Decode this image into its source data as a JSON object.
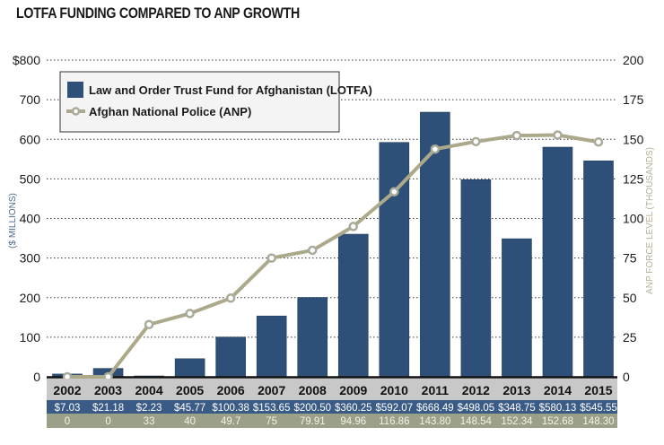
{
  "title": "LOTFA FUNDING COMPARED TO ANP GROWTH",
  "colors": {
    "bar": "#2e4f78",
    "line": "#aca88a",
    "marker_fill": "#ffffff",
    "marker_stroke": "#a9ab9a",
    "table_header": "#c8c8c8",
    "table_fund_row": "#3a5b86",
    "table_force_row": "#9ba088"
  },
  "chart_data": {
    "type": "bar",
    "title": "LOTFA FUNDING COMPARED TO ANP GROWTH",
    "categories": [
      "2002",
      "2003",
      "2004",
      "2005",
      "2006",
      "2007",
      "2008",
      "2009",
      "2010",
      "2011",
      "2012",
      "2013",
      "2014",
      "2015"
    ],
    "series": [
      {
        "name": "Law and Order Trust Fund for Afghanistan (LOTFA)",
        "type": "bar",
        "axis": "left",
        "values": [
          7.03,
          21.18,
          2.23,
          45.77,
          100.38,
          153.65,
          200.5,
          360.25,
          592.07,
          668.49,
          498.05,
          348.75,
          580.13,
          545.55
        ],
        "labels": [
          "$7.03",
          "$21.18",
          "$2.23",
          "$45.77",
          "$100.38",
          "$153.65",
          "$200.50",
          "$360.25",
          "$592.07",
          "$668.49",
          "$498.05",
          "$348.75",
          "$580.13",
          "$545.55"
        ]
      },
      {
        "name": "Afghan National Police (ANP)",
        "type": "line",
        "axis": "right",
        "values": [
          0,
          0,
          33,
          40,
          49.7,
          75,
          79.91,
          94.96,
          116.86,
          143.8,
          148.54,
          152.34,
          152.68,
          148.3
        ],
        "labels": [
          "0",
          "0",
          "33",
          "40",
          "49.7",
          "75",
          "79.91",
          "94.96",
          "116.86",
          "143.80",
          "148.54",
          "152.34",
          "152.68",
          "148.30"
        ]
      }
    ],
    "ylabel": "($ MILLIONS)",
    "ylabel_right": "ANP FORCE LEVEL (THOUSANDS)",
    "ylim": [
      0,
      800
    ],
    "ylim_right": [
      0,
      200
    ],
    "yticks": [
      0,
      100,
      200,
      300,
      400,
      500,
      600,
      700,
      800
    ],
    "ytick_labels": [
      "0",
      "100",
      "200",
      "300",
      "400",
      "500",
      "600",
      "700",
      "$800"
    ],
    "yticks_right": [
      0,
      25,
      50,
      75,
      100,
      125,
      150,
      175,
      200
    ],
    "ytick_labels_right": [
      "0",
      "25",
      "50",
      "75",
      "100",
      "125",
      "150",
      "175",
      "200"
    ],
    "grid": "dotted horizontal",
    "legend_position": "top-left"
  }
}
